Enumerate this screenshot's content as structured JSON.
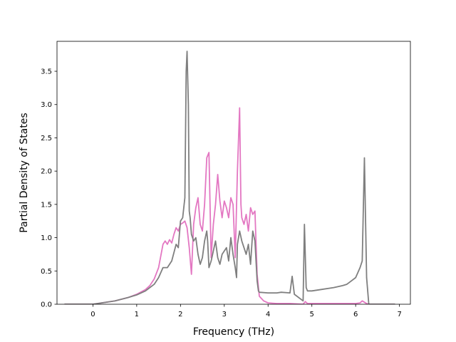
{
  "chart_data": {
    "type": "line",
    "title": "",
    "xlabel": "Frequency (THz)",
    "ylabel": "Partial Density of States",
    "xlim": [
      -0.82,
      7.25
    ],
    "ylim": [
      0,
      3.95
    ],
    "xticks": [
      0,
      1,
      2,
      3,
      4,
      5,
      6,
      7
    ],
    "xtick_labels": [
      "0",
      "1",
      "2",
      "3",
      "4",
      "5",
      "6",
      "7"
    ],
    "yticks": [
      0.0,
      0.5,
      1.0,
      1.5,
      2.0,
      2.5,
      3.0,
      3.5
    ],
    "ytick_labels": [
      "0.0",
      "0.5",
      "1.0",
      "1.5",
      "2.0",
      "2.5",
      "3.0",
      "3.5"
    ],
    "grid": false,
    "legend": "none",
    "series": [
      {
        "color": "#e377c2",
        "x": [
          -0.65,
          0.0,
          0.2,
          0.5,
          0.8,
          1.0,
          1.2,
          1.3,
          1.4,
          1.5,
          1.6,
          1.65,
          1.7,
          1.75,
          1.8,
          1.85,
          1.9,
          1.95,
          2.0,
          2.05,
          2.1,
          2.15,
          2.2,
          2.25,
          2.3,
          2.35,
          2.4,
          2.45,
          2.5,
          2.55,
          2.6,
          2.65,
          2.7,
          2.75,
          2.8,
          2.85,
          2.9,
          2.95,
          3.0,
          3.05,
          3.1,
          3.15,
          3.2,
          3.25,
          3.3,
          3.35,
          3.38,
          3.4,
          3.45,
          3.5,
          3.55,
          3.6,
          3.65,
          3.7,
          3.75,
          3.8,
          3.9,
          4.0,
          4.2,
          4.5,
          4.8,
          4.85,
          4.9,
          5.0,
          5.5,
          6.0,
          6.1,
          6.15,
          6.2,
          6.25,
          6.3,
          6.9
        ],
        "y": [
          0.0,
          0.0,
          0.02,
          0.05,
          0.1,
          0.15,
          0.22,
          0.28,
          0.38,
          0.55,
          0.9,
          0.95,
          0.9,
          0.97,
          0.92,
          1.05,
          1.15,
          1.1,
          1.2,
          1.22,
          1.25,
          1.15,
          0.85,
          0.45,
          1.2,
          1.45,
          1.6,
          1.2,
          1.1,
          1.5,
          2.2,
          2.28,
          0.7,
          1.2,
          1.5,
          1.95,
          1.55,
          1.3,
          1.55,
          1.45,
          1.3,
          1.6,
          1.5,
          0.7,
          2.0,
          2.95,
          1.5,
          1.3,
          1.2,
          1.35,
          1.1,
          1.45,
          1.35,
          1.4,
          0.45,
          0.12,
          0.05,
          0.02,
          0.01,
          0.01,
          0.0,
          0.04,
          0.01,
          0.01,
          0.01,
          0.01,
          0.02,
          0.05,
          0.03,
          0.01,
          0.0,
          0.0
        ]
      },
      {
        "color": "#7f7f7f",
        "x": [
          -0.65,
          0.0,
          0.2,
          0.5,
          0.8,
          1.0,
          1.2,
          1.3,
          1.4,
          1.5,
          1.6,
          1.7,
          1.8,
          1.9,
          1.95,
          2.0,
          2.05,
          2.1,
          2.13,
          2.15,
          2.18,
          2.2,
          2.22,
          2.25,
          2.3,
          2.35,
          2.4,
          2.45,
          2.5,
          2.55,
          2.6,
          2.62,
          2.65,
          2.7,
          2.75,
          2.8,
          2.85,
          2.9,
          2.95,
          3.0,
          3.05,
          3.1,
          3.15,
          3.2,
          3.25,
          3.28,
          3.3,
          3.35,
          3.4,
          3.45,
          3.5,
          3.55,
          3.6,
          3.65,
          3.7,
          3.75,
          3.78,
          3.8,
          4.0,
          4.2,
          4.3,
          4.5,
          4.55,
          4.6,
          4.8,
          4.83,
          4.87,
          4.9,
          5.0,
          5.2,
          5.5,
          5.7,
          5.8,
          5.9,
          6.0,
          6.1,
          6.15,
          6.2,
          6.25,
          6.3,
          6.9
        ],
        "y": [
          0.0,
          0.0,
          0.02,
          0.05,
          0.1,
          0.14,
          0.2,
          0.25,
          0.3,
          0.4,
          0.55,
          0.55,
          0.65,
          0.9,
          0.85,
          1.25,
          1.3,
          1.6,
          3.5,
          3.8,
          3.0,
          1.4,
          1.3,
          1.05,
          0.95,
          1.0,
          0.75,
          0.6,
          0.7,
          0.95,
          1.1,
          0.95,
          0.55,
          0.65,
          0.8,
          0.95,
          0.7,
          0.6,
          0.75,
          0.8,
          0.85,
          0.65,
          1.0,
          0.75,
          0.55,
          0.4,
          0.9,
          1.1,
          0.95,
          0.85,
          0.75,
          0.9,
          0.6,
          1.1,
          0.95,
          0.35,
          0.2,
          0.18,
          0.17,
          0.17,
          0.18,
          0.17,
          0.42,
          0.15,
          0.05,
          1.2,
          0.25,
          0.2,
          0.2,
          0.22,
          0.25,
          0.28,
          0.3,
          0.35,
          0.4,
          0.55,
          0.65,
          2.2,
          0.4,
          0.0,
          0.0
        ]
      }
    ]
  }
}
